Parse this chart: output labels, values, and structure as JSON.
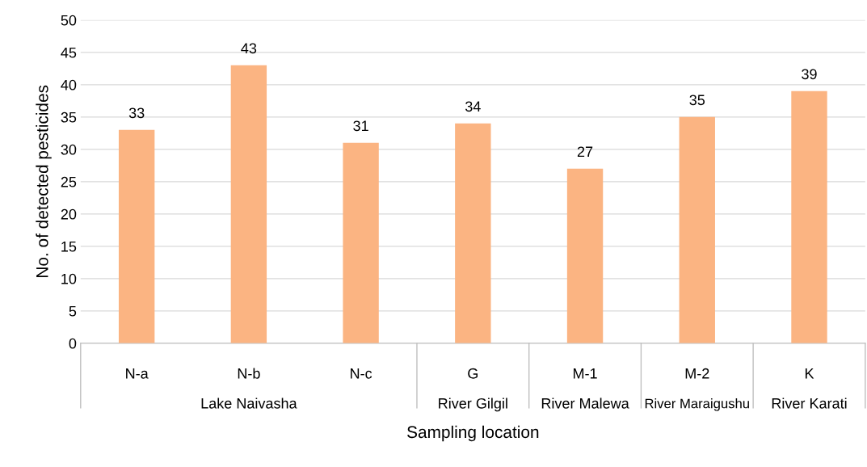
{
  "chart_data": {
    "type": "bar",
    "xlabel": "Sampling location",
    "ylabel": "No. of detected pesticides",
    "categories": [
      "N-a",
      "N-b",
      "N-c",
      "G",
      "M-1",
      "M-2",
      "K"
    ],
    "values": [
      33,
      43,
      31,
      34,
      27,
      35,
      39
    ],
    "color": "#fbb482",
    "ylim": [
      0,
      50
    ],
    "yticks": [
      0,
      5,
      10,
      15,
      20,
      25,
      30,
      35,
      40,
      45,
      50
    ],
    "grid": "y",
    "data_labels": true,
    "annotations": [
      "Lake Naivasha",
      "River Gilgil",
      "River Malewa",
      "River Maraigushu",
      "River Karati"
    ]
  }
}
